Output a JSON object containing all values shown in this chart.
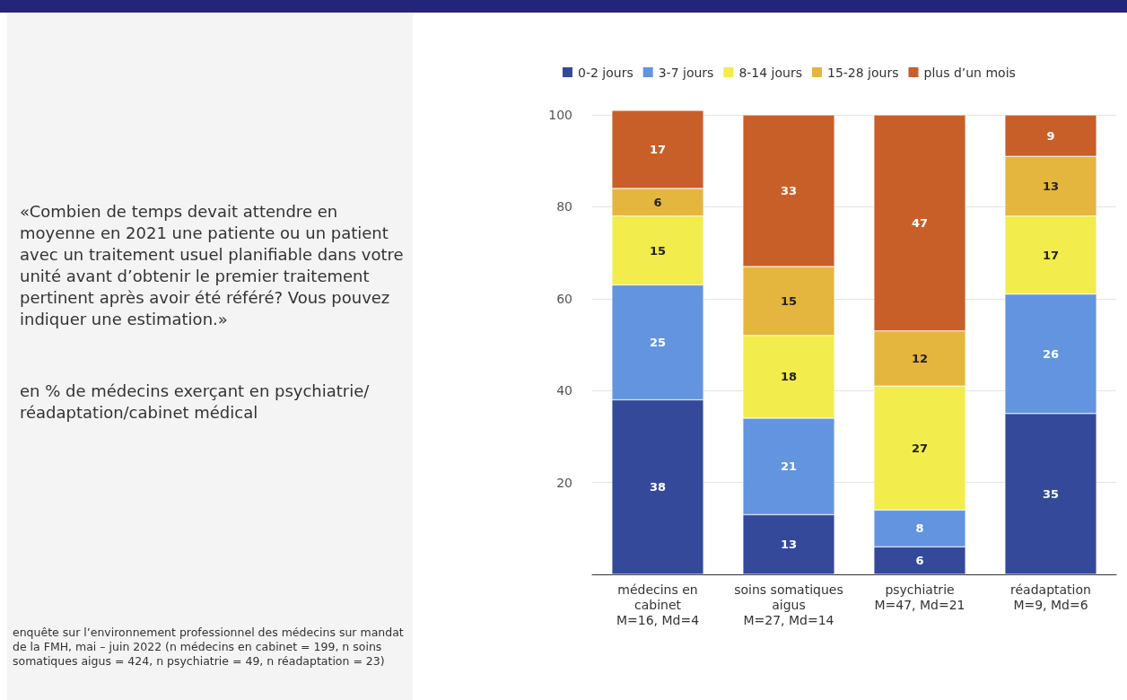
{
  "chart_data": {
    "type": "bar",
    "stacked": true,
    "title": "«Combien de temps devait attendre en moyenne en 2021 une patiente ou un patient avec un traitement usuel planifiable dans votre unité avant d’obtenir le premier traitement pertinent après avoir été référé? Vous pouvez indiquer une estimation.»",
    "subtitle": "en % de médecins exerçant en psychiatrie/ réadaptation/cabinet médical",
    "annotations": [
      "enquête sur l’environnement professionnel des médecins sur mandat de la FMH, mai – juin 2022 (n médecins en cabinet = 199, n soins somatiques aigus = 424, n psychiatrie = 49, n réadaptation = 23)"
    ],
    "categories": [
      "médecins en\ncabinet\nM=16, Md=4",
      "soins somatiques\naigus\nM=27, Md=14",
      "psychiatrie\nM=47, Md=21",
      "réadaptation\nM=9, Md=6"
    ],
    "series": [
      {
        "name": "0-2 jours",
        "color": "#34499a",
        "values": [
          38,
          13,
          6,
          35
        ]
      },
      {
        "name": "3-7 jours",
        "color": "#6394e0",
        "values": [
          25,
          21,
          8,
          26
        ]
      },
      {
        "name": "8-14 jours",
        "color": "#f2ec4c",
        "values": [
          15,
          18,
          27,
          17
        ]
      },
      {
        "name": "15-28 jours",
        "color": "#e4b63e",
        "values": [
          6,
          15,
          12,
          13
        ]
      },
      {
        "name": "plus d’un mois",
        "color": "#c85f28",
        "values": [
          17,
          33,
          47,
          9
        ]
      }
    ],
    "ylim": [
      0,
      101
    ],
    "yticks": [
      20,
      40,
      60,
      80,
      100
    ],
    "grid": "y",
    "legend": "top",
    "data_labels": true
  }
}
